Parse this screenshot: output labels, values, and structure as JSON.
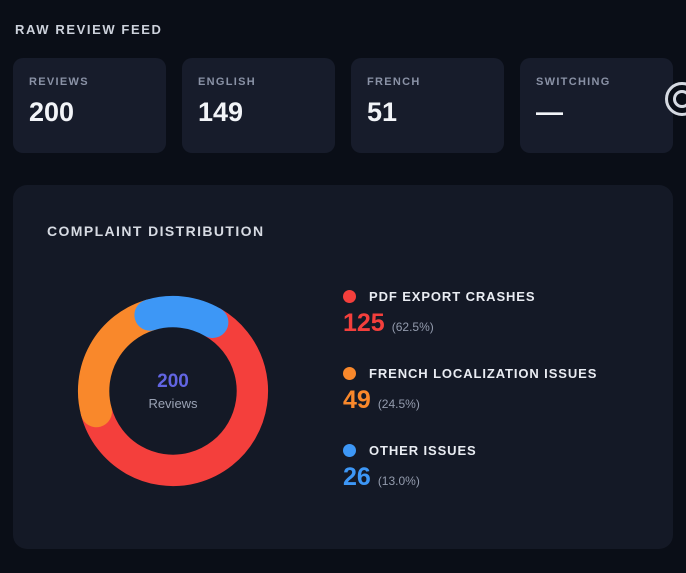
{
  "header": {
    "title": "RAW REVIEW FEED"
  },
  "stats": [
    {
      "label": "REVIEWS",
      "value": "200"
    },
    {
      "label": "ENGLISH",
      "value": "149"
    },
    {
      "label": "FRENCH",
      "value": "51"
    },
    {
      "label": "SWITCHING",
      "value": "—"
    }
  ],
  "chart_card": {
    "title": "COMPLAINT DISTRIBUTION"
  },
  "chart_data": {
    "type": "pie",
    "donut": true,
    "title": "COMPLAINT DISTRIBUTION",
    "total": 200,
    "legend_position": "right",
    "center": {
      "value": "200",
      "label": "Reviews",
      "value_color": "#6265e2"
    },
    "segments": [
      {
        "label": "PDF EXPORT CRASHES",
        "value": 125,
        "value_display": "125",
        "percent": 62.5,
        "percent_display": "(62.5%)",
        "color": "#f43f3c"
      },
      {
        "label": "FRENCH LOCALIZATION ISSUES",
        "value": 49,
        "value_display": "49",
        "percent": 24.5,
        "percent_display": "(24.5%)",
        "color": "#f9882b"
      },
      {
        "label": "OTHER ISSUES",
        "value": 26,
        "value_display": "26",
        "percent": 13.0,
        "percent_display": "(13.0%)",
        "color": "#3d97f6"
      }
    ]
  }
}
